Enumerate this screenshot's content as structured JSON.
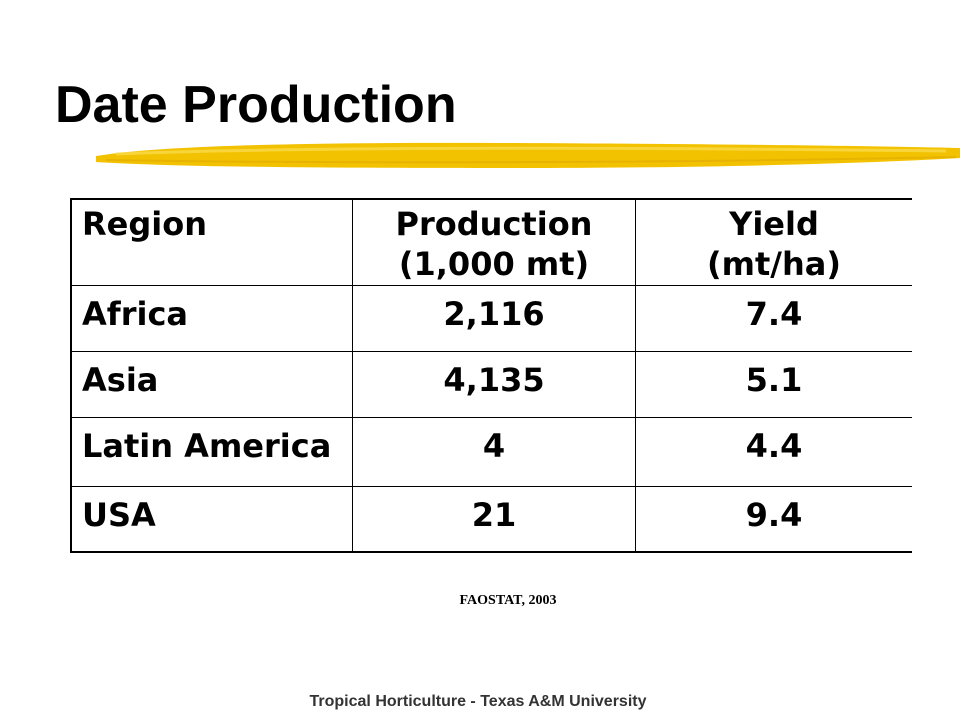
{
  "slide": {
    "title": "Date Production",
    "accent_color": "#F2C200",
    "source": "FAOSTAT, 2003",
    "footer": "Tropical Horticulture - Texas A&M University"
  },
  "table": {
    "headers": {
      "region": "Region",
      "production_line1": "Production",
      "production_line2": "(1,000 mt)",
      "yield_line1": "Yield",
      "yield_line2": "(mt/ha)"
    },
    "rows": [
      {
        "region": "Africa",
        "production": "2,116",
        "yield": "7.4"
      },
      {
        "region": "Asia",
        "production": "4,135",
        "yield": "5.1"
      },
      {
        "region": "Latin America",
        "production": "4",
        "yield": "4.4"
      },
      {
        "region": "USA",
        "production": "21",
        "yield": "9.4"
      }
    ]
  }
}
